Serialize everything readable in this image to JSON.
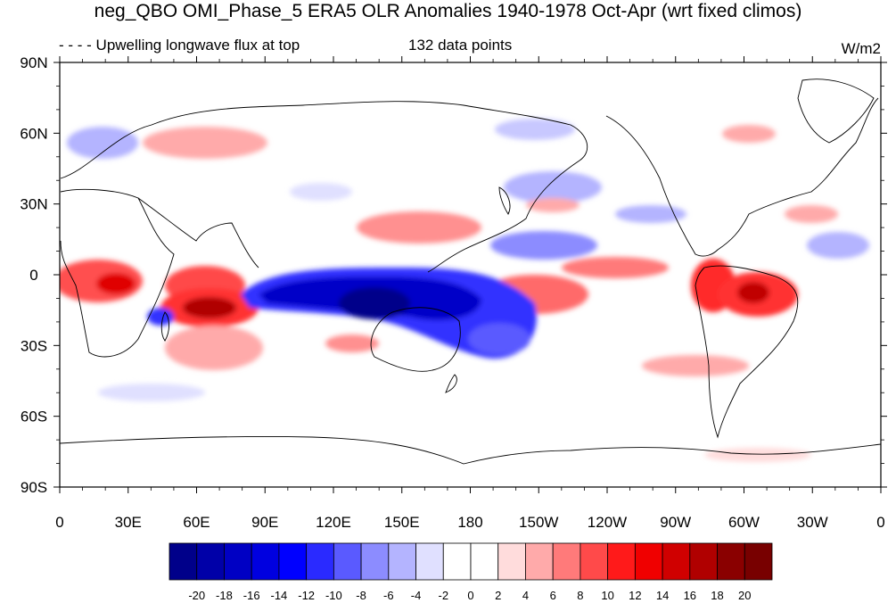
{
  "title": "neg_QBO OMI_Phase_5 ERA5 OLR Anomalies 1940-1978 Oct-Apr (wrt fixed climos)",
  "subtitle_left": "Upwelling longwave flux at top",
  "subtitle_center": "132 data points",
  "units": "W/m2",
  "lat_labels": [
    "90N",
    "60N",
    "30N",
    "0",
    "30S",
    "60S",
    "90S"
  ],
  "lon_labels": [
    "0",
    "30E",
    "60E",
    "90E",
    "120E",
    "150E",
    "180",
    "150W",
    "120W",
    "90W",
    "60W",
    "30W",
    "0"
  ],
  "colorbar": {
    "labels": [
      "-20",
      "-18",
      "-16",
      "-14",
      "-12",
      "-10",
      "-8",
      "-6",
      "-4",
      "-2",
      "0",
      "2",
      "4",
      "6",
      "8",
      "10",
      "12",
      "14",
      "16",
      "18",
      "20"
    ],
    "colors": [
      "#00008a",
      "#0000a8",
      "#0000c4",
      "#0000e0",
      "#0000ff",
      "#2a2aff",
      "#5a5aff",
      "#8c8cff",
      "#b4b4ff",
      "#e0e0ff",
      "#ffffff",
      "#ffffff",
      "#ffdcdc",
      "#ffaaaa",
      "#ff7a7a",
      "#ff4a4a",
      "#ff1a1a",
      "#f00000",
      "#d00000",
      "#b00000",
      "#8a0000",
      "#780000"
    ]
  }
}
